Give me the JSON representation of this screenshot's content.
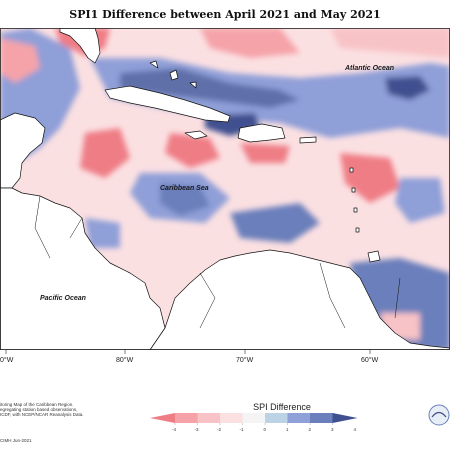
{
  "title": "SPI1 Difference between April 2021 and May 2021",
  "labels": {
    "atlantic": "Atlantic Ocean",
    "caribbean": "Caribbean Sea",
    "pacific": "Pacific Ocean"
  },
  "longitude_ticks": [
    "0°W",
    "80°W",
    "70°W",
    "60°W"
  ],
  "credits": [
    "itoring Map of the Caribbean Region.",
    "egregating station based observations,",
    "ICDF, with NCEP/NCAR Reanalysis Data."
  ],
  "copyright": "CIMH Jun-2021",
  "legend": {
    "title": "SPI Difference",
    "ticks": [
      "-4",
      "-3",
      "-2",
      "-1",
      "0",
      "1",
      "2",
      "3",
      "4"
    ],
    "colors": {
      "minus4": "#ef7d85",
      "minus3": "#f5a3a8",
      "minus2": "#f8c3c6",
      "minus1": "#fbe0e2",
      "zero": "#f4f4f4",
      "plus1": "#bcd3e6",
      "plus2": "#8f9fd8",
      "plus3": "#6a7fbb",
      "plus4": "#3f4f8f"
    }
  },
  "colors": {
    "land": "#ffffff",
    "coast": "#111111"
  }
}
